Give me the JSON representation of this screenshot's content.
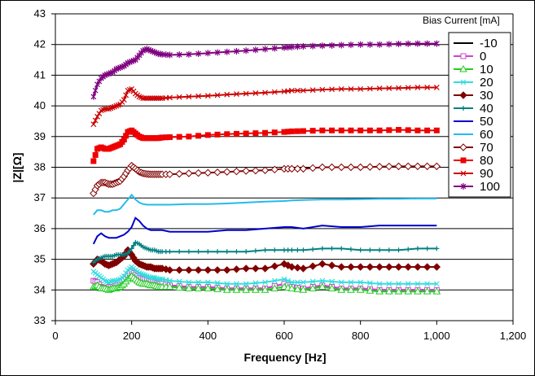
{
  "chart_data": {
    "type": "line",
    "xlabel": "Frequency [Hz]",
    "ylabel": "|Z|[Ω]",
    "xlim": [
      0,
      1200
    ],
    "ylim": [
      33,
      43
    ],
    "x_ticks": [
      0,
      200,
      400,
      600,
      800,
      1000,
      1200
    ],
    "x_tick_labels": [
      "0",
      "200",
      "400",
      "600",
      "800",
      "1,000",
      "1,200"
    ],
    "y_ticks": [
      33,
      34,
      35,
      36,
      37,
      38,
      39,
      40,
      41,
      42,
      43
    ],
    "y_tick_labels": [
      "33",
      "34",
      "35",
      "36",
      "37",
      "38",
      "39",
      "40",
      "41",
      "42",
      "43"
    ],
    "grid": "horizontal",
    "legend_title": "Bias Current [mA]",
    "legend_position": "right",
    "series_labels": [
      "-10",
      "0",
      "10",
      "20",
      "30",
      "40",
      "50",
      "60",
      "70",
      "80",
      "90",
      "100"
    ],
    "x": [
      100,
      110,
      120,
      130,
      140,
      150,
      160,
      170,
      180,
      190,
      200,
      210,
      220,
      230,
      240,
      250,
      260,
      270,
      280,
      300,
      350,
      400,
      450,
      500,
      550,
      600,
      620,
      650,
      700,
      750,
      800,
      850,
      900,
      950,
      1000
    ],
    "series": [
      {
        "name": "-10",
        "color": "#000000",
        "marker": "none",
        "values": [
          34.15,
          34.1,
          34.15,
          34.05,
          34.1,
          34.1,
          34.15,
          34.2,
          34.3,
          34.5,
          34.55,
          34.45,
          34.35,
          34.3,
          34.3,
          34.25,
          34.2,
          34.2,
          34.2,
          34.15,
          34.1,
          34.1,
          34.05,
          34.05,
          34.05,
          34.2,
          34.1,
          34.05,
          34.15,
          34.05,
          34.05,
          34.0,
          34.0,
          34.0,
          34.0
        ]
      },
      {
        "name": "0",
        "color": "#cc44cc",
        "marker": "square-open",
        "values": [
          34.3,
          34.25,
          34.1,
          34.05,
          34.1,
          34.1,
          34.15,
          34.25,
          34.35,
          34.5,
          34.6,
          34.5,
          34.4,
          34.35,
          34.35,
          34.3,
          34.25,
          34.2,
          34.2,
          34.15,
          34.1,
          34.1,
          34.05,
          34.05,
          34.05,
          34.2,
          34.1,
          34.05,
          34.15,
          34.05,
          34.05,
          34.0,
          34.0,
          34.0,
          34.0
        ]
      },
      {
        "name": "10",
        "color": "#22cc22",
        "marker": "triangle-open",
        "values": [
          34.1,
          34.15,
          34.05,
          34.05,
          34.0,
          34.05,
          34.05,
          34.1,
          34.2,
          34.35,
          34.45,
          34.35,
          34.25,
          34.2,
          34.2,
          34.15,
          34.15,
          34.1,
          34.1,
          34.1,
          34.05,
          34.05,
          34.0,
          34.0,
          34.0,
          34.1,
          34.05,
          34.0,
          34.1,
          34.0,
          34.0,
          33.95,
          33.95,
          33.95,
          33.95
        ]
      },
      {
        "name": "20",
        "color": "#33dddd",
        "marker": "x",
        "values": [
          34.6,
          34.5,
          34.4,
          34.3,
          34.25,
          34.3,
          34.3,
          34.35,
          34.45,
          34.65,
          34.75,
          34.65,
          34.55,
          34.5,
          34.45,
          34.4,
          34.4,
          34.35,
          34.35,
          34.3,
          34.25,
          34.25,
          34.2,
          34.2,
          34.25,
          34.35,
          34.25,
          34.25,
          34.3,
          34.25,
          34.25,
          34.2,
          34.2,
          34.2,
          34.2
        ]
      },
      {
        "name": "30",
        "color": "#800000",
        "marker": "diamond",
        "values": [
          34.85,
          35.0,
          34.95,
          34.85,
          34.8,
          34.85,
          34.9,
          35.0,
          35.1,
          35.3,
          35.15,
          34.95,
          34.85,
          34.8,
          34.75,
          34.75,
          34.7,
          34.7,
          34.7,
          34.65,
          34.65,
          34.65,
          34.65,
          34.7,
          34.7,
          34.85,
          34.75,
          34.7,
          34.85,
          34.75,
          34.75,
          34.75,
          34.75,
          34.75,
          34.75
        ]
      },
      {
        "name": "40",
        "color": "#008080",
        "marker": "plus",
        "values": [
          34.9,
          35.0,
          35.05,
          35.1,
          35.1,
          35.1,
          35.15,
          35.15,
          35.15,
          35.2,
          35.35,
          35.55,
          35.5,
          35.4,
          35.35,
          35.3,
          35.3,
          35.25,
          35.25,
          35.25,
          35.25,
          35.25,
          35.25,
          35.25,
          35.3,
          35.3,
          35.3,
          35.3,
          35.35,
          35.35,
          35.3,
          35.3,
          35.3,
          35.35,
          35.35
        ]
      },
      {
        "name": "50",
        "color": "#0000cc",
        "marker": "none",
        "values": [
          35.5,
          35.75,
          35.85,
          35.75,
          35.7,
          35.7,
          35.7,
          35.75,
          35.8,
          35.9,
          36.05,
          36.35,
          36.25,
          36.1,
          36.0,
          35.95,
          35.95,
          35.95,
          35.95,
          35.9,
          35.9,
          35.9,
          35.95,
          35.95,
          36.0,
          36.05,
          36.05,
          36.0,
          36.1,
          36.05,
          36.05,
          36.1,
          36.1,
          36.1,
          36.1
        ]
      },
      {
        "name": "60",
        "color": "#22bbee",
        "marker": "none",
        "values": [
          36.45,
          36.6,
          36.6,
          36.55,
          36.55,
          36.6,
          36.6,
          36.65,
          36.8,
          36.95,
          37.1,
          36.95,
          36.85,
          36.8,
          36.78,
          36.78,
          36.78,
          36.78,
          36.78,
          36.78,
          36.8,
          36.8,
          36.82,
          36.85,
          36.88,
          36.9,
          36.92,
          36.93,
          36.95,
          36.95,
          36.96,
          36.97,
          36.97,
          36.98,
          36.98
        ]
      },
      {
        "name": "70",
        "color": "#800000",
        "marker": "diamond-open",
        "values": [
          37.15,
          37.4,
          37.5,
          37.5,
          37.45,
          37.45,
          37.5,
          37.55,
          37.7,
          37.9,
          38.05,
          37.95,
          37.85,
          37.8,
          37.78,
          37.77,
          37.77,
          37.77,
          37.77,
          37.77,
          37.8,
          37.82,
          37.85,
          37.88,
          37.9,
          37.95,
          37.95,
          37.95,
          38.0,
          38.0,
          38.0,
          38.02,
          38.03,
          38.03,
          38.03
        ]
      },
      {
        "name": "80",
        "color": "#ee0000",
        "marker": "square",
        "values": [
          38.2,
          38.6,
          38.65,
          38.6,
          38.6,
          38.65,
          38.7,
          38.75,
          38.9,
          39.15,
          39.2,
          39.1,
          39.0,
          38.95,
          38.95,
          38.95,
          38.95,
          38.95,
          38.97,
          38.98,
          39.0,
          39.05,
          39.08,
          39.1,
          39.12,
          39.15,
          39.17,
          39.18,
          39.2,
          39.2,
          39.2,
          39.2,
          39.22,
          39.2,
          39.2
        ]
      },
      {
        "name": "90",
        "color": "#cc0000",
        "marker": "x",
        "values": [
          39.4,
          39.65,
          39.85,
          39.9,
          39.9,
          39.95,
          40.0,
          40.05,
          40.2,
          40.5,
          40.55,
          40.4,
          40.3,
          40.25,
          40.25,
          40.25,
          40.25,
          40.25,
          40.25,
          40.27,
          40.3,
          40.33,
          40.37,
          40.4,
          40.43,
          40.47,
          40.5,
          40.5,
          40.53,
          40.55,
          40.55,
          40.57,
          40.58,
          40.6,
          40.6
        ]
      },
      {
        "name": "100",
        "color": "#800080",
        "marker": "star",
        "values": [
          40.3,
          40.7,
          40.9,
          41.0,
          41.05,
          41.1,
          41.2,
          41.25,
          41.3,
          41.4,
          41.45,
          41.5,
          41.65,
          41.8,
          41.85,
          41.8,
          41.75,
          41.7,
          41.68,
          41.66,
          41.68,
          41.72,
          41.76,
          41.8,
          41.85,
          41.9,
          41.92,
          41.94,
          41.96,
          41.98,
          42.0,
          42.0,
          42.02,
          42.03,
          42.03
        ]
      }
    ]
  }
}
